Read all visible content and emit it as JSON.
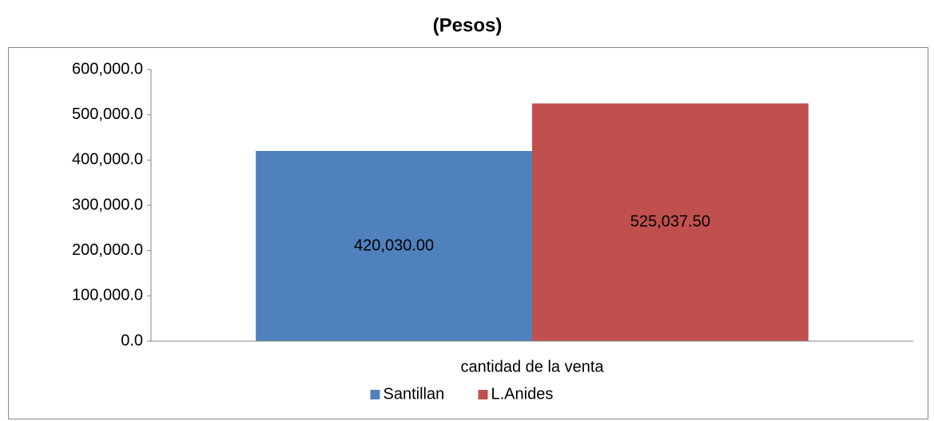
{
  "chart_data": {
    "type": "bar",
    "title": "(Pesos)",
    "categories": [
      "cantidad de la venta"
    ],
    "series": [
      {
        "name": "Santillan",
        "color": "#4f81bd",
        "values": [
          420030
        ],
        "value_labels": [
          "420,030.00"
        ]
      },
      {
        "name": "L.Anides",
        "color": "#c0504d",
        "values": [
          525037.5
        ],
        "value_labels": [
          "525,037.50"
        ]
      }
    ],
    "ylim": [
      0,
      600000
    ],
    "yticks": [
      {
        "value": 0,
        "label": "0.0"
      },
      {
        "value": 100000,
        "label": "100,000.0"
      },
      {
        "value": 200000,
        "label": "200,000.0"
      },
      {
        "value": 300000,
        "label": "300,000.0"
      },
      {
        "value": 400000,
        "label": "400,000.0"
      },
      {
        "value": 500000,
        "label": "500,000.0"
      },
      {
        "value": 600000,
        "label": "600,000.0"
      }
    ],
    "grid": false,
    "legend": "bottom"
  }
}
